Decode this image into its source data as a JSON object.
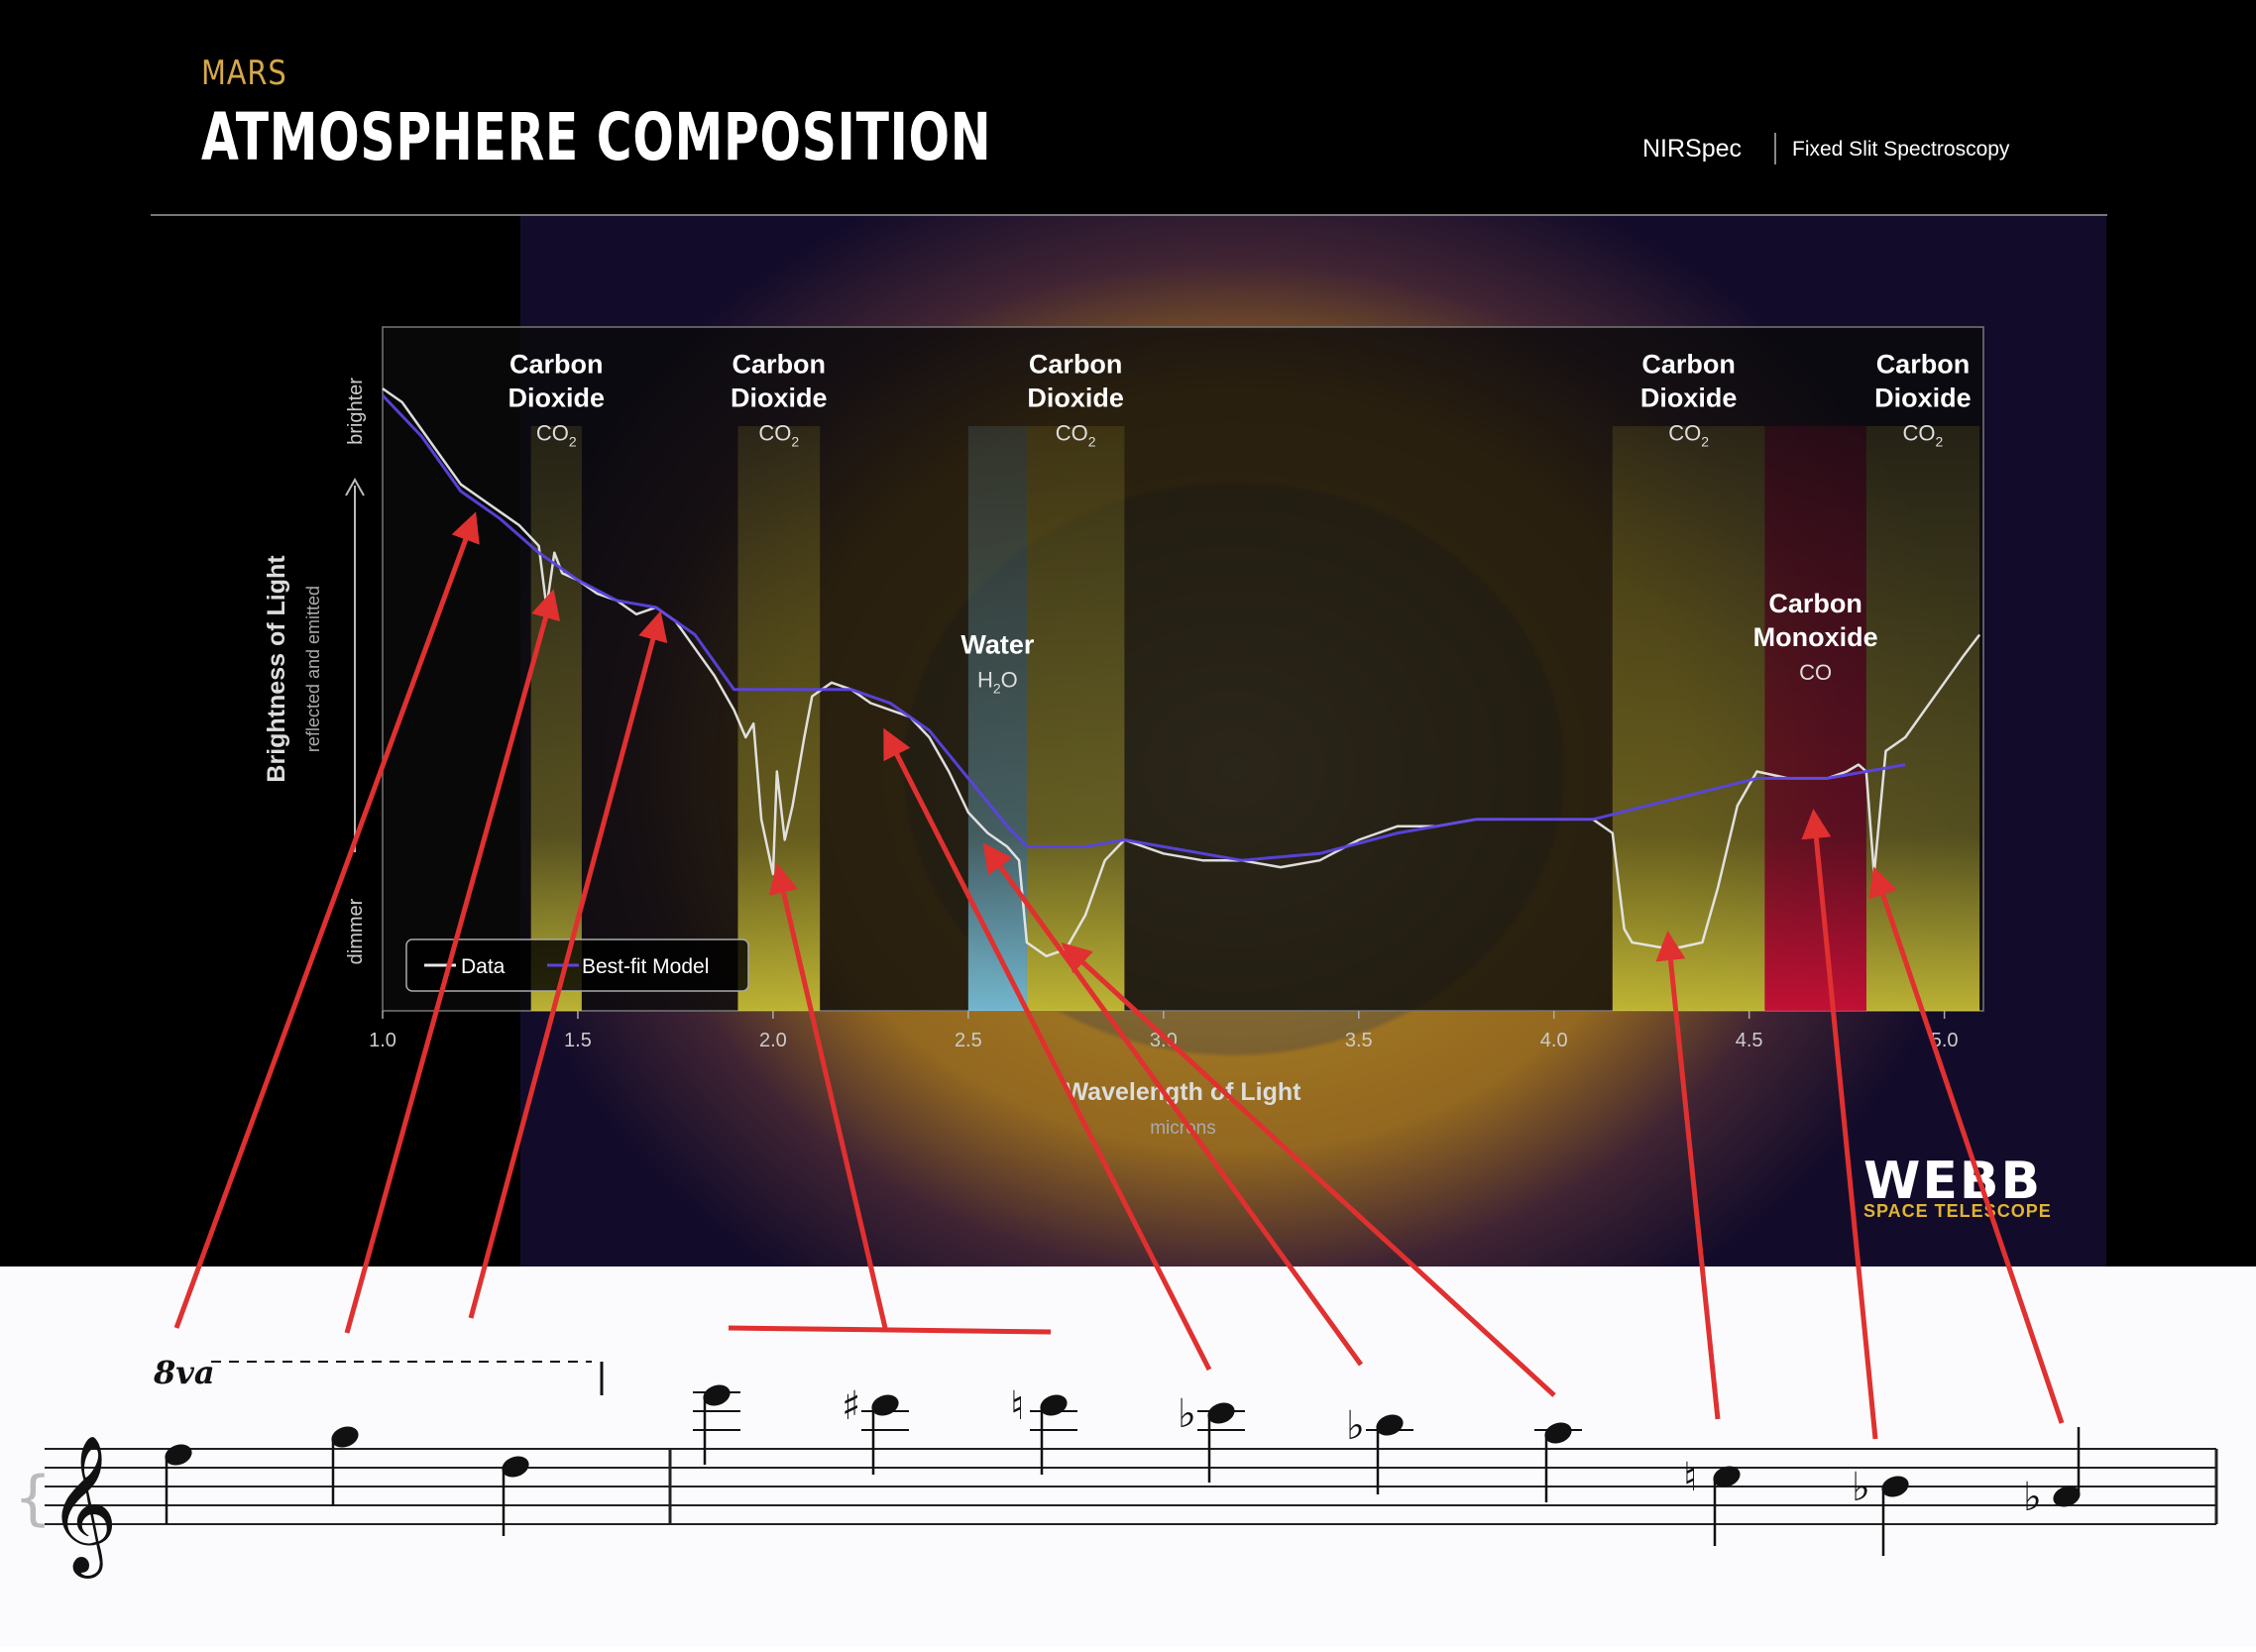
{
  "header": {
    "subtitle": "MARS",
    "title": "ATMOSPHERE COMPOSITION",
    "instrument": "NIRSpec",
    "mode": "Fixed Slit Spectroscopy"
  },
  "logo": {
    "name": "WEBB",
    "sub": "SPACE TELESCOPE"
  },
  "chart_data": {
    "type": "line",
    "title": "",
    "xlabel": "Wavelength of Light",
    "xunit": "microns",
    "ylabel": "Brightness of Light",
    "ysub": "reflected and emitted",
    "y_low": "dimmer",
    "y_high": "brighter",
    "xlim": [
      1.0,
      5.1
    ],
    "ylim": [
      0,
      1
    ],
    "x_ticks": [
      "1.0",
      "1.5",
      "2.0",
      "2.5",
      "3.0",
      "3.5",
      "4.0",
      "4.5",
      "5.0"
    ],
    "legend": {
      "placement": "bottom-left",
      "items": [
        "Data",
        "Best-fit Model"
      ]
    },
    "bands": [
      {
        "label1": "Carbon",
        "label2": "Dioxide",
        "formula": "CO",
        "sub": "2",
        "x0": 1.38,
        "x1": 1.51,
        "color": "#d9cf3a",
        "label_y": 0.97
      },
      {
        "label1": "Carbon",
        "label2": "Dioxide",
        "formula": "CO",
        "sub": "2",
        "x0": 1.91,
        "x1": 2.12,
        "color": "#d9cf3a",
        "label_y": 0.97
      },
      {
        "label1": "Carbon",
        "label2": "Dioxide",
        "formula": "CO",
        "sub": "2",
        "x0": 2.65,
        "x1": 2.9,
        "color": "#d9cf3a",
        "label_y": 0.97
      },
      {
        "label1": "Water",
        "label2": "",
        "formula": "H",
        "sub": "2",
        "suffix": "O",
        "x0": 2.5,
        "x1": 2.65,
        "color": "#7fd0f0",
        "label_y": 0.56
      },
      {
        "label1": "Carbon",
        "label2": "Dioxide",
        "formula": "CO",
        "sub": "2",
        "x0": 4.15,
        "x1": 4.54,
        "color": "#d9cf3a",
        "label_y": 0.97
      },
      {
        "label1": "Carbon",
        "label2": "Dioxide",
        "formula": "CO",
        "sub": "2",
        "x0": 4.8,
        "x1": 5.09,
        "color": "#d9cf3a",
        "label_y": 0.97
      },
      {
        "label1": "Carbon",
        "label2": "Monoxide",
        "formula": "CO",
        "sub": "",
        "x0": 4.54,
        "x1": 4.8,
        "color": "#e0103a",
        "label_y": 0.62
      }
    ],
    "series": [
      {
        "name": "Data",
        "color": "#e8e8e8",
        "x": [
          1.0,
          1.05,
          1.1,
          1.15,
          1.2,
          1.25,
          1.3,
          1.35,
          1.4,
          1.42,
          1.44,
          1.46,
          1.5,
          1.55,
          1.6,
          1.65,
          1.7,
          1.75,
          1.8,
          1.85,
          1.9,
          1.93,
          1.95,
          1.97,
          2.0,
          2.01,
          2.03,
          2.05,
          2.08,
          2.1,
          2.15,
          2.2,
          2.25,
          2.3,
          2.35,
          2.4,
          2.45,
          2.5,
          2.55,
          2.6,
          2.63,
          2.65,
          2.7,
          2.75,
          2.8,
          2.85,
          2.9,
          2.95,
          3.0,
          3.1,
          3.2,
          3.3,
          3.4,
          3.5,
          3.6,
          3.7,
          3.8,
          3.9,
          4.0,
          4.1,
          4.15,
          4.18,
          4.2,
          4.3,
          4.38,
          4.42,
          4.47,
          4.52,
          4.6,
          4.7,
          4.75,
          4.78,
          4.8,
          4.82,
          4.85,
          4.9,
          4.95,
          5.0,
          5.05,
          5.09
        ],
        "y": [
          0.91,
          0.89,
          0.85,
          0.81,
          0.77,
          0.75,
          0.73,
          0.71,
          0.68,
          0.59,
          0.67,
          0.64,
          0.63,
          0.61,
          0.6,
          0.58,
          0.59,
          0.57,
          0.53,
          0.49,
          0.44,
          0.4,
          0.42,
          0.28,
          0.2,
          0.35,
          0.25,
          0.3,
          0.4,
          0.46,
          0.48,
          0.47,
          0.45,
          0.44,
          0.43,
          0.4,
          0.35,
          0.29,
          0.26,
          0.24,
          0.22,
          0.1,
          0.08,
          0.09,
          0.14,
          0.22,
          0.25,
          0.24,
          0.23,
          0.22,
          0.22,
          0.21,
          0.22,
          0.25,
          0.27,
          0.27,
          0.28,
          0.28,
          0.28,
          0.28,
          0.26,
          0.12,
          0.1,
          0.09,
          0.1,
          0.18,
          0.3,
          0.35,
          0.34,
          0.34,
          0.35,
          0.36,
          0.35,
          0.2,
          0.38,
          0.4,
          0.44,
          0.48,
          0.52,
          0.55
        ]
      },
      {
        "name": "Best-fit Model",
        "color": "#5a44e0",
        "x": [
          1.0,
          1.1,
          1.2,
          1.3,
          1.4,
          1.5,
          1.6,
          1.7,
          1.8,
          1.9,
          2.2,
          2.3,
          2.4,
          2.5,
          2.6,
          2.65,
          2.8,
          2.9,
          3.0,
          3.2,
          3.4,
          3.6,
          3.8,
          4.0,
          4.1,
          4.52,
          4.7,
          4.8,
          4.9
        ],
        "y": [
          0.9,
          0.84,
          0.76,
          0.72,
          0.67,
          0.63,
          0.6,
          0.59,
          0.55,
          0.47,
          0.47,
          0.45,
          0.41,
          0.34,
          0.27,
          0.24,
          0.24,
          0.25,
          0.24,
          0.22,
          0.23,
          0.26,
          0.28,
          0.28,
          0.28,
          0.34,
          0.34,
          0.35,
          0.36
        ]
      }
    ]
  },
  "score": {
    "ottava": "8va",
    "notes": [
      {
        "acc": ""
      },
      {
        "acc": ""
      },
      {
        "acc": ""
      },
      {
        "acc": ""
      },
      {
        "acc": "♯"
      },
      {
        "acc": "♮"
      },
      {
        "acc": "♭"
      },
      {
        "acc": "♭"
      },
      {
        "acc": ""
      },
      {
        "acc": "♮"
      },
      {
        "acc": "♭"
      },
      {
        "acc": "♭"
      }
    ]
  }
}
